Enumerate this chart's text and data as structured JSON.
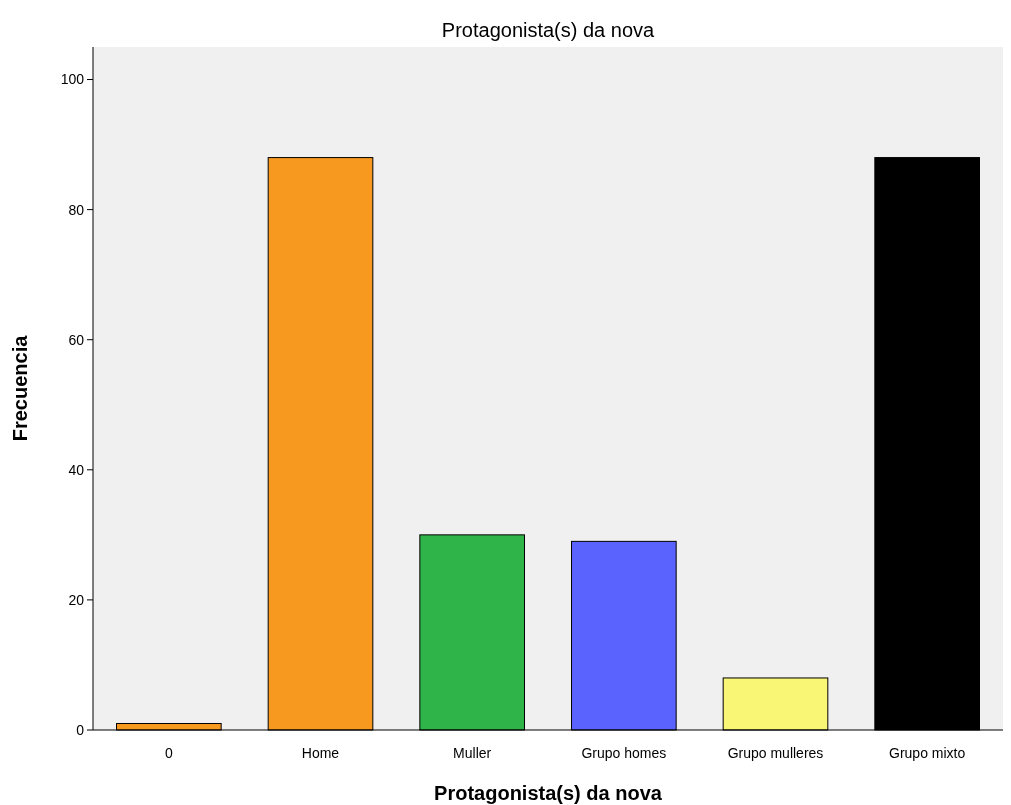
{
  "chart_data": {
    "type": "bar",
    "title": "Protagonista(s) da nova",
    "xlabel": "Protagonista(s) da nova",
    "ylabel": "Frecuencia",
    "categories": [
      "0",
      "Home",
      "Muller",
      "Grupo homes",
      "Grupo mulleres",
      "Grupo mixto"
    ],
    "values": [
      1,
      88,
      30,
      29,
      8,
      88
    ],
    "colors": [
      "#f7991f",
      "#f7991f",
      "#2fb44a",
      "#5b63fe",
      "#f9f575",
      "#000000"
    ],
    "ylim": [
      0,
      105
    ],
    "yticks": [
      0,
      20,
      40,
      60,
      80,
      100
    ],
    "grid": false
  }
}
